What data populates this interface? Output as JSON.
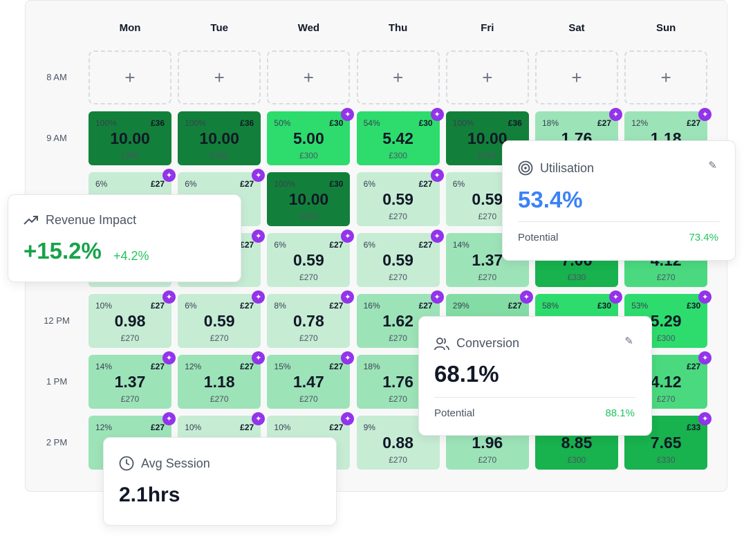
{
  "days": [
    "Mon",
    "Tue",
    "Wed",
    "Thu",
    "Fri",
    "Sat",
    "Sun"
  ],
  "hours": [
    "8 AM",
    "9 AM",
    "10 AM",
    "11 AM",
    "12 PM",
    "1 PM",
    "2 PM"
  ],
  "add_label": "+",
  "colors": {
    "dark": "#12803a",
    "strong": "#18b24e",
    "bright": "#2ddc6d",
    "mid": "#4bd97f",
    "medium": "#9de3b8",
    "soft": "#82dca4",
    "light": "#c6ecd4",
    "sparkle": "#9333ea",
    "accent_blue": "#3b82f6",
    "positive": "#22c55e"
  },
  "rows": [
    [
      {
        "pct": "100%",
        "price": "£36",
        "value": "10.00",
        "total": "£360",
        "color": "dark",
        "sparkle": false
      },
      {
        "pct": "100%",
        "price": "£36",
        "value": "10.00",
        "total": "£360",
        "color": "dark",
        "sparkle": false
      },
      {
        "pct": "50%",
        "price": "£30",
        "value": "5.00",
        "total": "£300",
        "color": "bright",
        "sparkle": true
      },
      {
        "pct": "54%",
        "price": "£30",
        "value": "5.42",
        "total": "£300",
        "color": "bright",
        "sparkle": true
      },
      {
        "pct": "100%",
        "price": "£36",
        "value": "10.00",
        "total": "£360",
        "color": "dark",
        "sparkle": false
      },
      {
        "pct": "18%",
        "price": "£27",
        "value": "1.76",
        "total": "",
        "color": "medium",
        "sparkle": true
      },
      {
        "pct": "12%",
        "price": "£27",
        "value": "1.18",
        "total": "",
        "color": "medium",
        "sparkle": true
      }
    ],
    [
      {
        "pct": "6%",
        "price": "£27",
        "value": "",
        "total": "",
        "color": "light",
        "sparkle": true
      },
      {
        "pct": "6%",
        "price": "£27",
        "value": "",
        "total": "",
        "color": "light",
        "sparkle": true
      },
      {
        "pct": "100%",
        "price": "£30",
        "value": "10.00",
        "total": "£300",
        "color": "dark",
        "sparkle": false
      },
      {
        "pct": "6%",
        "price": "£27",
        "value": "0.59",
        "total": "£270",
        "color": "light",
        "sparkle": true
      },
      {
        "pct": "6%",
        "price": "",
        "value": "0.59",
        "total": "£270",
        "color": "light",
        "sparkle": false
      },
      {
        "pct": "",
        "price": "",
        "value": "",
        "total": "",
        "color": "light",
        "sparkle": false
      },
      {
        "pct": "",
        "price": "",
        "value": "",
        "total": "",
        "color": "light",
        "sparkle": false
      }
    ],
    [
      {
        "pct": "",
        "price": "",
        "value": "",
        "total": "",
        "color": "light",
        "sparkle": false
      },
      {
        "pct": "",
        "price": "£27",
        "value": "",
        "total": "",
        "color": "light",
        "sparkle": true
      },
      {
        "pct": "6%",
        "price": "£27",
        "value": "0.59",
        "total": "£270",
        "color": "light",
        "sparkle": true
      },
      {
        "pct": "6%",
        "price": "£27",
        "value": "0.59",
        "total": "£270",
        "color": "light",
        "sparkle": true
      },
      {
        "pct": "14%",
        "price": "",
        "value": "1.37",
        "total": "£270",
        "color": "medium",
        "sparkle": false
      },
      {
        "pct": "",
        "price": "",
        "value": "7.06",
        "total": "£330",
        "color": "strong",
        "sparkle": false
      },
      {
        "pct": "",
        "price": "",
        "value": "4.12",
        "total": "£270",
        "color": "mid",
        "sparkle": false
      }
    ],
    [
      {
        "pct": "10%",
        "price": "£27",
        "value": "0.98",
        "total": "£270",
        "color": "light",
        "sparkle": true
      },
      {
        "pct": "6%",
        "price": "£27",
        "value": "0.59",
        "total": "£270",
        "color": "light",
        "sparkle": true
      },
      {
        "pct": "8%",
        "price": "£27",
        "value": "0.78",
        "total": "£270",
        "color": "light",
        "sparkle": true
      },
      {
        "pct": "16%",
        "price": "£27",
        "value": "1.62",
        "total": "£270",
        "color": "medium",
        "sparkle": true
      },
      {
        "pct": "29%",
        "price": "£27",
        "value": "",
        "total": "",
        "color": "soft",
        "sparkle": true
      },
      {
        "pct": "58%",
        "price": "£30",
        "value": "",
        "total": "",
        "color": "bright",
        "sparkle": true
      },
      {
        "pct": "53%",
        "price": "£30",
        "value": "5.29",
        "total": "£300",
        "color": "bright",
        "sparkle": true
      }
    ],
    [
      {
        "pct": "14%",
        "price": "£27",
        "value": "1.37",
        "total": "£270",
        "color": "medium",
        "sparkle": true
      },
      {
        "pct": "12%",
        "price": "£27",
        "value": "1.18",
        "total": "£270",
        "color": "medium",
        "sparkle": true
      },
      {
        "pct": "15%",
        "price": "£27",
        "value": "1.47",
        "total": "£270",
        "color": "medium",
        "sparkle": true
      },
      {
        "pct": "18%",
        "price": "£27",
        "value": "1.76",
        "total": "£270",
        "color": "medium",
        "sparkle": true
      },
      {
        "pct": "",
        "price": "",
        "value": "",
        "total": "",
        "color": "medium",
        "sparkle": false
      },
      {
        "pct": "",
        "price": "",
        "value": "",
        "total": "",
        "color": "strong",
        "sparkle": false
      },
      {
        "pct": "",
        "price": "£27",
        "value": "4.12",
        "total": "£270",
        "color": "mid",
        "sparkle": true
      }
    ],
    [
      {
        "pct": "12%",
        "price": "£27",
        "value": "",
        "total": "",
        "color": "medium",
        "sparkle": true
      },
      {
        "pct": "10%",
        "price": "£27",
        "value": "",
        "total": "",
        "color": "light",
        "sparkle": true
      },
      {
        "pct": "10%",
        "price": "£27",
        "value": "",
        "total": "",
        "color": "light",
        "sparkle": true
      },
      {
        "pct": "9%",
        "price": "",
        "value": "0.88",
        "total": "£270",
        "color": "light",
        "sparkle": false
      },
      {
        "pct": "",
        "price": "",
        "value": "1.96",
        "total": "£270",
        "color": "medium",
        "sparkle": false
      },
      {
        "pct": "",
        "price": "",
        "value": "8.85",
        "total": "£300",
        "color": "strong",
        "sparkle": false
      },
      {
        "pct": "",
        "price": "£33",
        "value": "7.65",
        "total": "£330",
        "color": "strong",
        "sparkle": true
      }
    ]
  ],
  "cards": {
    "revenue": {
      "title": "Revenue Impact",
      "icon": "trending-up-icon",
      "value": "+15.2%",
      "delta": "+4.2%"
    },
    "utilisation": {
      "title": "Utilisation",
      "icon": "target-icon",
      "value": "53.4%",
      "potential_label": "Potential",
      "potential_value": "73.4%"
    },
    "conversion": {
      "title": "Conversion",
      "icon": "users-icon",
      "value": "68.1%",
      "potential_label": "Potential",
      "potential_value": "88.1%"
    },
    "session": {
      "title": "Avg Session",
      "icon": "clock-icon",
      "value": "2.1hrs"
    }
  }
}
